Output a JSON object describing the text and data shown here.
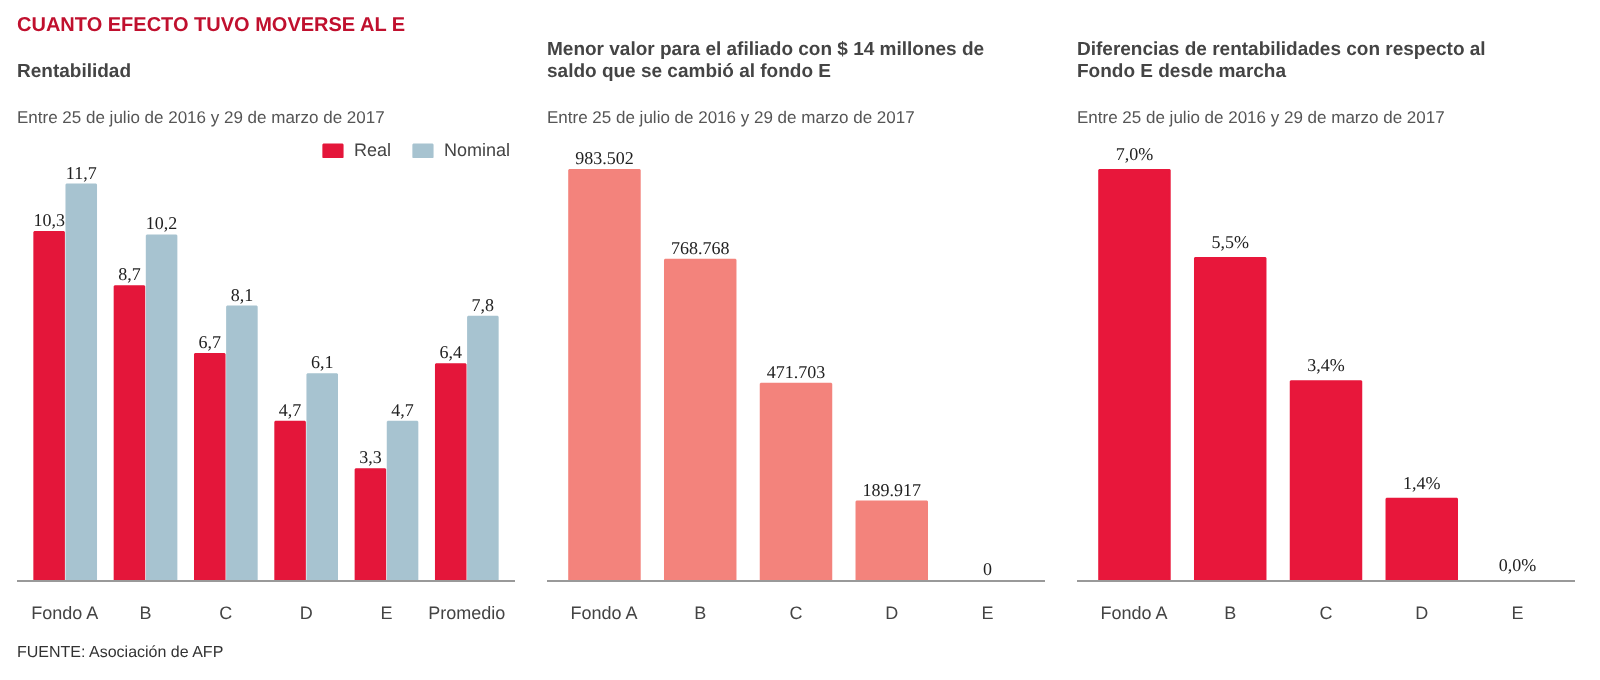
{
  "chart_data": [
    {
      "type": "bar",
      "title": "Rentabilidad",
      "subtitle": "Entre 25 de julio de 2016  y 29 de marzo de 2017",
      "categories": [
        "Fondo A",
        "B",
        "C",
        "D",
        "E",
        "Promedio"
      ],
      "series": [
        {
          "name": "Real",
          "color": "#e4163a",
          "values": [
            10.3,
            8.7,
            6.7,
            4.7,
            3.3,
            6.4
          ],
          "value_labels": [
            "10,3",
            "8,7",
            "6,7",
            "4,7",
            "3,3",
            "6,4"
          ]
        },
        {
          "name": "Nominal",
          "color": "#a7c3d0",
          "values": [
            11.7,
            10.2,
            8.1,
            6.1,
            4.7,
            7.8
          ],
          "value_labels": [
            "11,7",
            "10,2",
            "8,1",
            "6,1",
            "4,7",
            "7,8"
          ]
        }
      ],
      "legend": "top right",
      "grid": false,
      "annotations": [
        "CUANTO EFECTO TUVO MOVERSE AL E",
        "FUENTE: Asociación de AFP"
      ]
    },
    {
      "type": "bar",
      "title": "Menor valor para el afiliado con $ 14 millones de saldo que se cambió al fondo E",
      "subtitle": "Entre 25 de julio de 2016  y 29 de marzo de 2017",
      "categories": [
        "Fondo A",
        "B",
        "C",
        "D",
        "E"
      ],
      "series": [
        {
          "color": "#f3837c",
          "values": [
            983502,
            768768,
            471703,
            189917,
            0
          ],
          "value_labels": [
            "983.502",
            "768.768",
            "471.703",
            "189.917",
            "0"
          ]
        }
      ],
      "grid": false
    },
    {
      "type": "bar",
      "title": "Diferencias de rentabilidades con respecto al Fondo E desde marcha",
      "subtitle": "Entre 25 de julio de 2016  y 29 de marzo de 2017",
      "categories": [
        "Fondo A",
        "B",
        "C",
        "D",
        "E"
      ],
      "series": [
        {
          "color": "#e8173b",
          "values": [
            7.0,
            5.5,
            3.4,
            1.4,
            0.0
          ],
          "value_labels": [
            "7,0%",
            "5,5%",
            "3,4%",
            "1,4%",
            "0,0%"
          ]
        }
      ],
      "grid": false
    }
  ]
}
